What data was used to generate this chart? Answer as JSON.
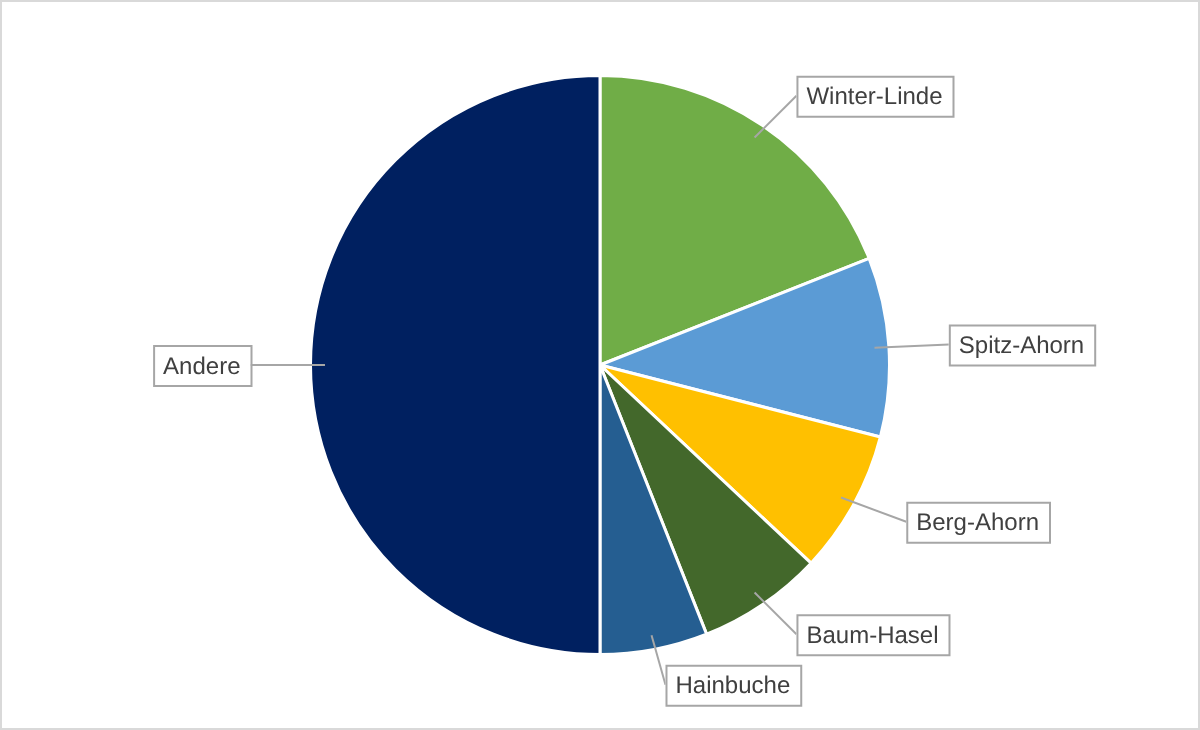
{
  "chart_data": {
    "type": "pie",
    "categories": [
      "Winter-Linde",
      "Spitz-Ahorn",
      "Berg-Ahorn",
      "Baum-Hasel",
      "Hainbuche",
      "Andere"
    ],
    "values": [
      19,
      10,
      8,
      7,
      6,
      50
    ],
    "colors": [
      "#70ad47",
      "#5b9bd5",
      "#ffc000",
      "#43682b",
      "#255e91",
      "#002060"
    ],
    "legend": false
  }
}
